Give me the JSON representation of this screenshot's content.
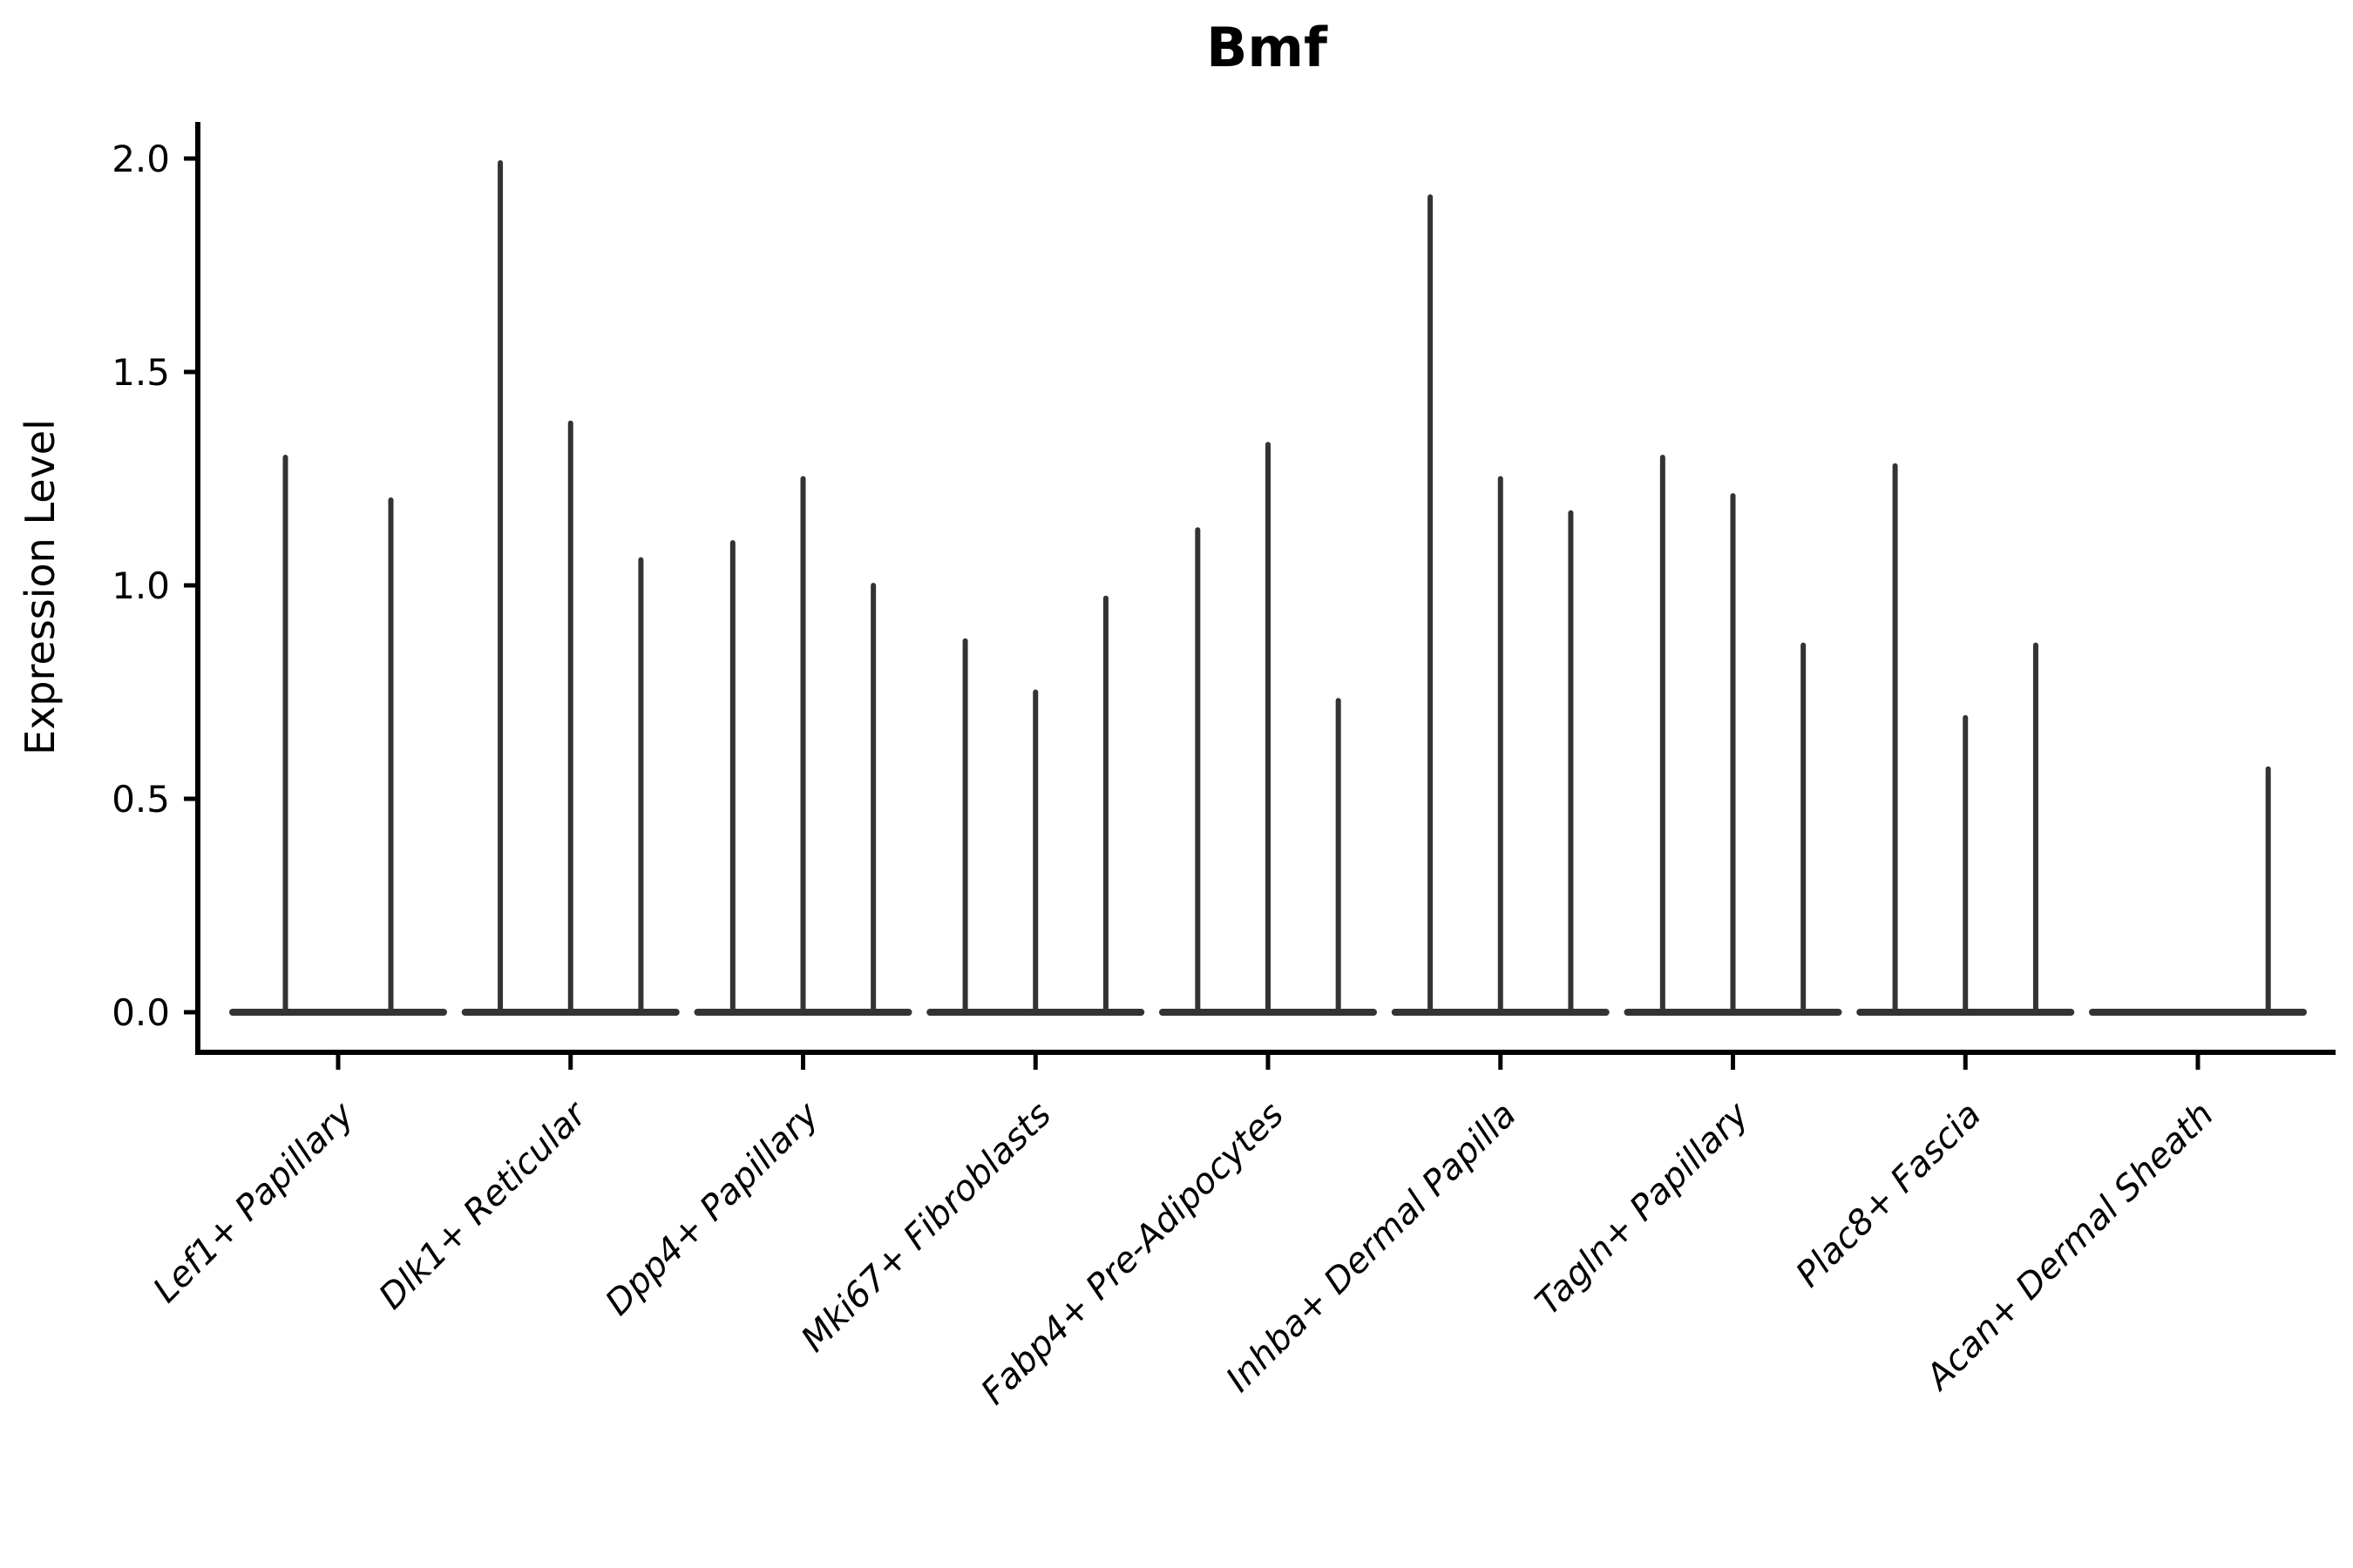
{
  "chart_data": {
    "type": "violin",
    "title": "Bmf",
    "ylabel": "Expression Level",
    "xlabel": "",
    "ylim": [
      0,
      2.05
    ],
    "yticks": [
      0,
      0.5,
      1.0,
      1.5,
      2.0
    ],
    "ytick_labels": [
      "0.0",
      "0.5",
      "1.0",
      "1.5",
      "2.0"
    ],
    "grid": false,
    "legend": "none",
    "groups": [
      {
        "label": "Lef1+ Papillary",
        "violin_peaks": [
          1.3,
          1.2
        ]
      },
      {
        "label": "Dlk1+ Reticular",
        "violin_peaks": [
          1.99,
          1.38,
          1.06
        ]
      },
      {
        "label": "Dpp4+ Papillary",
        "violin_peaks": [
          1.1,
          1.25,
          1.0
        ]
      },
      {
        "label": "Mki67+ Fibroblasts",
        "violin_peaks": [
          0.87,
          0.75,
          0.97
        ]
      },
      {
        "label": "Fabp4+ Pre-Adipocytes",
        "violin_peaks": [
          1.13,
          1.33,
          0.73
        ]
      },
      {
        "label": "Inhba+ Dermal Papilla",
        "violin_peaks": [
          1.91,
          1.25,
          1.17
        ]
      },
      {
        "label": "Tagln+ Papillary",
        "violin_peaks": [
          1.3,
          1.21,
          0.86
        ]
      },
      {
        "label": "Plac8+ Fascia",
        "violin_peaks": [
          1.28,
          0.69,
          0.86
        ]
      },
      {
        "label": "Acan+ Dermal Sheath",
        "violin_peaks": [
          0,
          0,
          0.57
        ]
      }
    ],
    "colors": {
      "violin": "#333333",
      "axis": "#000000",
      "text": "#000000",
      "background": "#ffffff"
    }
  }
}
